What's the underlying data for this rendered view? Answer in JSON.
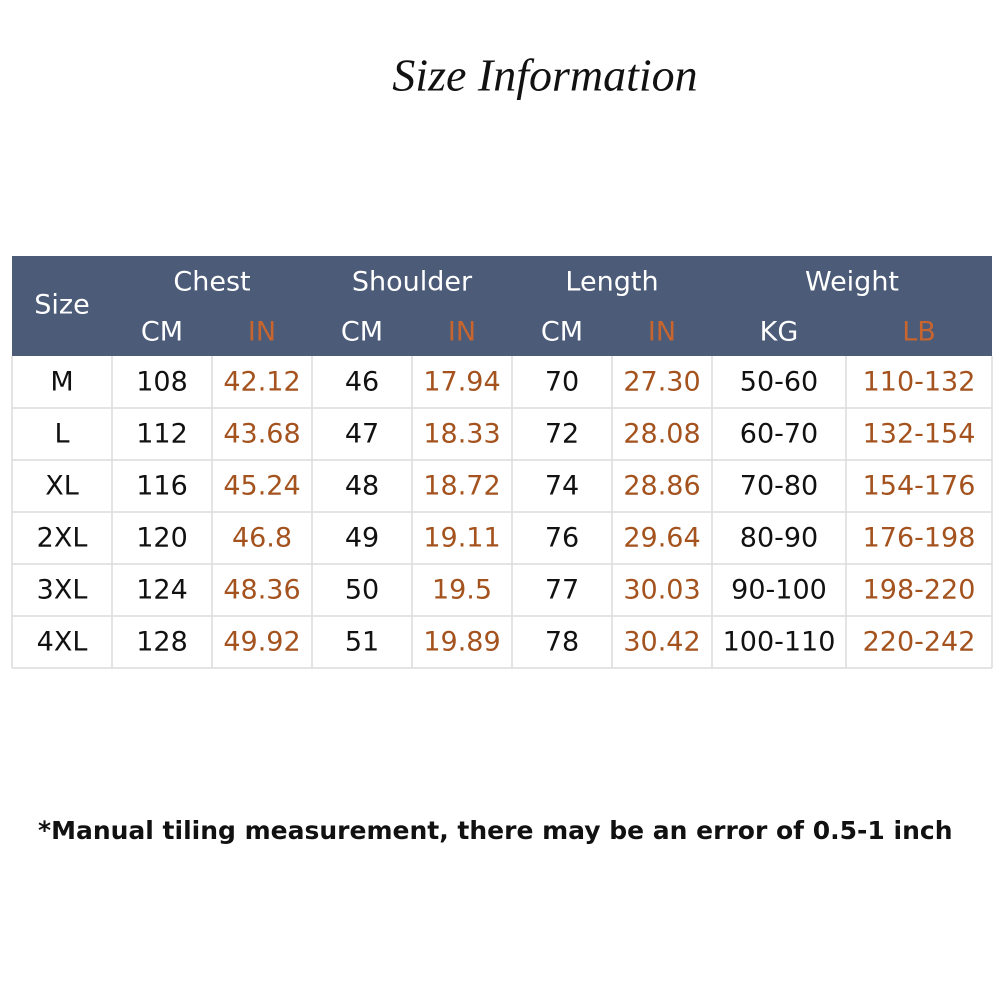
{
  "title": "Size Information",
  "table": {
    "size_header": "Size",
    "groups": [
      "Chest",
      "Shoulder",
      "Length",
      "Weight"
    ],
    "units": [
      "CM",
      "IN",
      "CM",
      "IN",
      "CM",
      "IN",
      "KG",
      "LB"
    ],
    "rows": [
      [
        "M",
        "108",
        "42.12",
        "46",
        "17.94",
        "70",
        "27.30",
        "50-60",
        "110-132"
      ],
      [
        "L",
        "112",
        "43.68",
        "47",
        "18.33",
        "72",
        "28.08",
        "60-70",
        "132-154"
      ],
      [
        "XL",
        "116",
        "45.24",
        "48",
        "18.72",
        "74",
        "28.86",
        "70-80",
        "154-176"
      ],
      [
        "2XL",
        "120",
        "46.8",
        "49",
        "19.11",
        "76",
        "29.64",
        "80-90",
        "176-198"
      ],
      [
        "3XL",
        "124",
        "48.36",
        "50",
        "19.5",
        "77",
        "30.03",
        "90-100",
        "198-220"
      ],
      [
        "4XL",
        "128",
        "49.92",
        "51",
        "19.89",
        "78",
        "30.42",
        "100-110",
        "220-242"
      ]
    ]
  },
  "footnote": "*Manual tiling measurement, there may be an error of 0.5-1 inch"
}
